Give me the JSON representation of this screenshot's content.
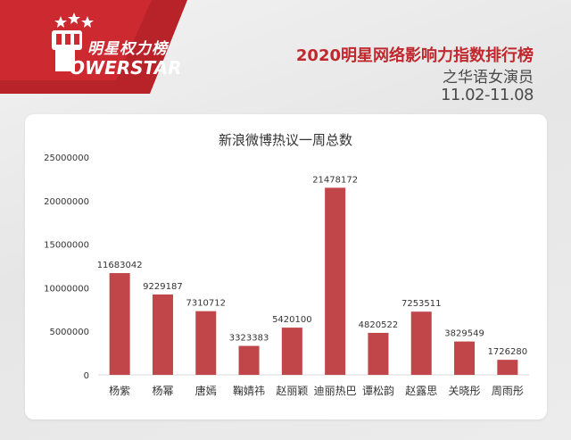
{
  "brand": {
    "logo_cn": "明星权力榜",
    "logo_en": "OWERSTAR",
    "accent_color": "#c0282e"
  },
  "header": {
    "title": "2020明星网络影响力指数排行榜",
    "subtitle": "之华语女演员",
    "date_range": "11.02-11.08"
  },
  "chart_data": {
    "type": "bar",
    "title": "新浪微博热议一周总数",
    "categories": [
      "杨紫",
      "杨幂",
      "唐嫣",
      "鞠婧祎",
      "赵丽颖",
      "迪丽热巴",
      "谭松韵",
      "赵露思",
      "关晓彤",
      "周雨彤"
    ],
    "values": [
      11683042,
      9229187,
      7310712,
      3323383,
      5420100,
      21478172,
      4820522,
      7253511,
      3829549,
      1726280
    ],
    "value_labels": [
      "11683042",
      "9229187",
      "7310712",
      "3323383",
      "5420100",
      "21478172",
      "4820522",
      "7253511",
      "3829549",
      "1726280"
    ],
    "ylim": [
      0,
      25000000
    ],
    "yticks": [
      "0",
      "5000000",
      "10000000",
      "15000000",
      "20000000",
      "25000000"
    ],
    "bar_color": "#c0464a",
    "grid": false,
    "legend": "none"
  }
}
